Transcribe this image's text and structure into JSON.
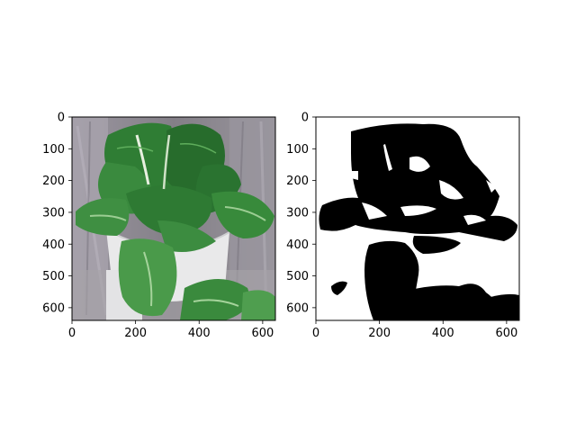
{
  "figure": {
    "panels": [
      {
        "kind": "photo",
        "subject": "green leafy plant (bok choy) in a white pot",
        "x_ticks": [
          "0",
          "200",
          "400",
          "600"
        ],
        "y_ticks": [
          "0",
          "100",
          "200",
          "300",
          "400",
          "500",
          "600"
        ]
      },
      {
        "kind": "binary-mask",
        "subject": "black segmentation mask of the plant on white background",
        "x_ticks": [
          "0",
          "200",
          "400",
          "600"
        ],
        "y_ticks": [
          "0",
          "100",
          "200",
          "300",
          "400",
          "500",
          "600"
        ]
      }
    ],
    "colors": {
      "photo_background": "#8f8a93",
      "leaf_dark": "#1f5a22",
      "leaf_mid": "#2f7d34",
      "leaf_light": "#5aa45a",
      "pot": "#e9e9ea",
      "mask_black": "#000000",
      "mask_white": "#ffffff"
    }
  }
}
